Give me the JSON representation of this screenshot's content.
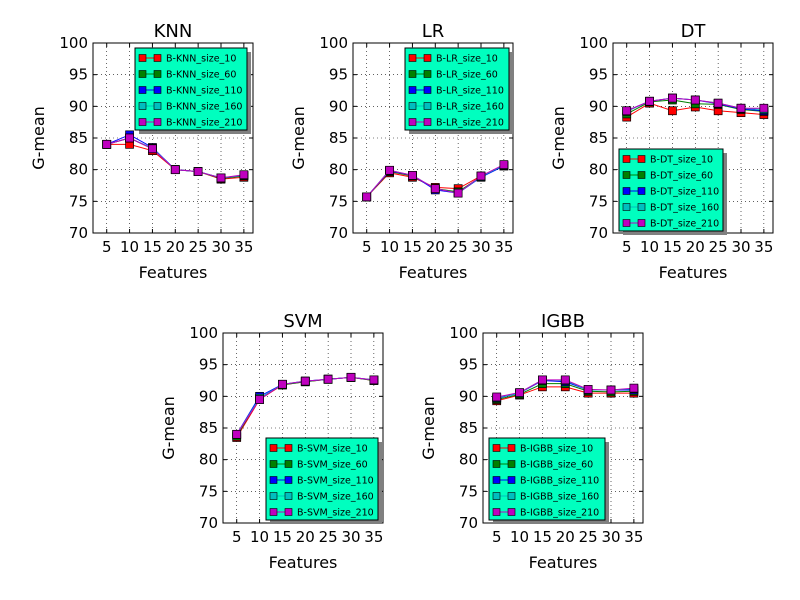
{
  "chart_data": [
    {
      "type": "line",
      "title": "KNN",
      "xlabel": "Features",
      "ylabel": "G-mean",
      "x": [
        5,
        10,
        15,
        20,
        25,
        30,
        35
      ],
      "xlim": [
        2,
        37
      ],
      "ylim": [
        70,
        100
      ],
      "xticks": [
        "5",
        "10",
        "15",
        "20",
        "25",
        "30",
        "35"
      ],
      "yticks": [
        "70",
        "75",
        "80",
        "85",
        "90",
        "95",
        "100"
      ],
      "grid": true,
      "legend_position": "upper-right",
      "series": [
        {
          "name": "B-KNN_size_10",
          "color": "#ff0000",
          "values": [
            84.0,
            84.0,
            83.0,
            80.0,
            79.7,
            78.5,
            78.8
          ]
        },
        {
          "name": "B-KNN_size_60",
          "color": "#008000",
          "values": [
            84.0,
            85.0,
            83.3,
            80.0,
            79.7,
            78.6,
            79.0
          ]
        },
        {
          "name": "B-KNN_size_110",
          "color": "#0000ff",
          "values": [
            84.0,
            85.5,
            83.5,
            80.0,
            79.7,
            78.7,
            79.1
          ]
        },
        {
          "name": "B-KNN_size_160",
          "color": "#00bfbf",
          "values": [
            84.0,
            85.0,
            83.4,
            80.0,
            79.7,
            78.7,
            79.1
          ]
        },
        {
          "name": "B-KNN_size_210",
          "color": "#bf00bf",
          "values": [
            84.0,
            85.0,
            83.3,
            80.0,
            79.7,
            78.7,
            79.2
          ]
        }
      ]
    },
    {
      "type": "line",
      "title": "LR",
      "xlabel": "Features",
      "ylabel": "G-mean",
      "x": [
        5,
        10,
        15,
        20,
        25,
        30,
        35
      ],
      "xlim": [
        2,
        37
      ],
      "ylim": [
        70,
        100
      ],
      "xticks": [
        "5",
        "10",
        "15",
        "20",
        "25",
        "30",
        "35"
      ],
      "yticks": [
        "70",
        "75",
        "80",
        "85",
        "90",
        "95",
        "100"
      ],
      "grid": true,
      "legend_position": "upper-right",
      "series": [
        {
          "name": "B-LR_size_10",
          "color": "#ff0000",
          "values": [
            75.7,
            79.5,
            78.8,
            77.2,
            77.0,
            79.0,
            80.6
          ]
        },
        {
          "name": "B-LR_size_60",
          "color": "#008000",
          "values": [
            75.7,
            79.7,
            79.0,
            77.0,
            76.5,
            78.9,
            80.6
          ]
        },
        {
          "name": "B-LR_size_110",
          "color": "#0000ff",
          "values": [
            75.7,
            79.8,
            79.1,
            76.8,
            76.3,
            78.8,
            80.6
          ]
        },
        {
          "name": "B-LR_size_160",
          "color": "#00bfbf",
          "values": [
            75.7,
            79.9,
            79.1,
            77.0,
            76.3,
            78.9,
            80.7
          ]
        },
        {
          "name": "B-LR_size_210",
          "color": "#bf00bf",
          "values": [
            75.7,
            79.9,
            79.1,
            77.0,
            76.3,
            79.0,
            80.8
          ]
        }
      ]
    },
    {
      "type": "line",
      "title": "DT",
      "xlabel": "Features",
      "ylabel": "G-mean",
      "x": [
        5,
        10,
        15,
        20,
        25,
        30,
        35
      ],
      "xlim": [
        2,
        37
      ],
      "ylim": [
        70,
        100
      ],
      "xticks": [
        "5",
        "10",
        "15",
        "20",
        "25",
        "30",
        "35"
      ],
      "yticks": [
        "70",
        "75",
        "80",
        "85",
        "90",
        "95",
        "100"
      ],
      "grid": true,
      "legend_position": "lower-left",
      "series": [
        {
          "name": "B-DT_size_10",
          "color": "#ff0000",
          "values": [
            88.3,
            90.5,
            89.3,
            89.9,
            89.3,
            89.0,
            88.7
          ]
        },
        {
          "name": "B-DT_size_60",
          "color": "#008000",
          "values": [
            88.8,
            90.7,
            91.0,
            90.4,
            90.3,
            89.5,
            89.2
          ]
        },
        {
          "name": "B-DT_size_110",
          "color": "#0000ff",
          "values": [
            89.3,
            90.8,
            91.3,
            91.0,
            90.4,
            89.6,
            89.3
          ]
        },
        {
          "name": "B-DT_size_160",
          "color": "#00bfbf",
          "values": [
            89.2,
            90.8,
            91.3,
            91.0,
            90.5,
            89.7,
            89.5
          ]
        },
        {
          "name": "B-DT_size_210",
          "color": "#bf00bf",
          "values": [
            89.3,
            90.8,
            91.3,
            91.0,
            90.5,
            89.7,
            89.7
          ]
        }
      ]
    },
    {
      "type": "line",
      "title": "SVM",
      "xlabel": "Features",
      "ylabel": "G-mean",
      "x": [
        5,
        10,
        15,
        20,
        25,
        30,
        35
      ],
      "xlim": [
        2,
        37
      ],
      "ylim": [
        70,
        100
      ],
      "xticks": [
        "5",
        "10",
        "15",
        "20",
        "25",
        "30",
        "35"
      ],
      "yticks": [
        "70",
        "75",
        "80",
        "85",
        "90",
        "95",
        "100"
      ],
      "grid": true,
      "legend_position": "lower-right",
      "series": [
        {
          "name": "B-SVM_size_10",
          "color": "#ff0000",
          "values": [
            83.5,
            89.5,
            91.8,
            92.3,
            92.7,
            93.0,
            92.5
          ]
        },
        {
          "name": "B-SVM_size_60",
          "color": "#008000",
          "values": [
            83.7,
            89.7,
            91.8,
            92.3,
            92.7,
            93.0,
            92.5
          ]
        },
        {
          "name": "B-SVM_size_110",
          "color": "#0000ff",
          "values": [
            84.0,
            90.0,
            91.9,
            92.4,
            92.7,
            93.0,
            92.6
          ]
        },
        {
          "name": "B-SVM_size_160",
          "color": "#00bfbf",
          "values": [
            84.0,
            89.7,
            91.9,
            92.4,
            92.7,
            93.0,
            92.6
          ]
        },
        {
          "name": "B-SVM_size_210",
          "color": "#bf00bf",
          "values": [
            84.0,
            89.5,
            91.9,
            92.4,
            92.7,
            93.0,
            92.6
          ]
        }
      ]
    },
    {
      "type": "line",
      "title": "IGBB",
      "xlabel": "Features",
      "ylabel": "G-mean",
      "x": [
        5,
        10,
        15,
        20,
        25,
        30,
        35
      ],
      "xlim": [
        2,
        37
      ],
      "ylim": [
        70,
        100
      ],
      "xticks": [
        "5",
        "10",
        "15",
        "20",
        "25",
        "30",
        "35"
      ],
      "yticks": [
        "70",
        "75",
        "80",
        "85",
        "90",
        "95",
        "100"
      ],
      "grid": true,
      "legend_position": "lower-left",
      "series": [
        {
          "name": "B-IGBB_size_10",
          "color": "#ff0000",
          "values": [
            89.3,
            90.2,
            91.5,
            91.5,
            90.5,
            90.5,
            90.5
          ]
        },
        {
          "name": "B-IGBB_size_60",
          "color": "#008000",
          "values": [
            89.5,
            90.3,
            92.0,
            92.0,
            90.8,
            90.7,
            90.8
          ]
        },
        {
          "name": "B-IGBB_size_110",
          "color": "#0000ff",
          "values": [
            89.7,
            90.5,
            92.5,
            92.3,
            91.0,
            91.0,
            91.0
          ]
        },
        {
          "name": "B-IGBB_size_160",
          "color": "#00bfbf",
          "values": [
            89.8,
            90.5,
            92.6,
            92.5,
            91.0,
            91.0,
            91.2
          ]
        },
        {
          "name": "B-IGBB_size_210",
          "color": "#bf00bf",
          "values": [
            89.9,
            90.6,
            92.6,
            92.6,
            91.1,
            91.0,
            91.3
          ]
        }
      ]
    }
  ]
}
